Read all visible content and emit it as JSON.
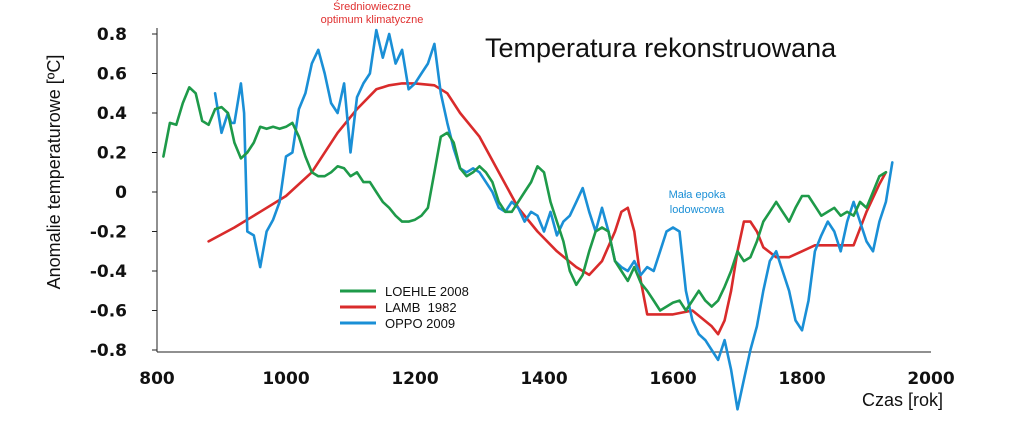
{
  "chart_data": {
    "type": "line",
    "title": "Temperatura rekonstruowana",
    "xlabel": "Czas [rok]",
    "ylabel": "Anomalie temperaturowe [ºC]",
    "xlim": [
      800,
      2000
    ],
    "ylim": [
      -0.8,
      0.8
    ],
    "x_ticks": [
      800,
      1000,
      1200,
      1400,
      1600,
      1800,
      2000
    ],
    "y_ticks": [
      -0.8,
      -0.6,
      -0.4,
      -0.2,
      0,
      0.2,
      0.4,
      0.6,
      0.8
    ],
    "x_tick_labels": [
      "800",
      "1000",
      "1200",
      "1400",
      "1600",
      "1800",
      "2000"
    ],
    "y_tick_labels": [
      "-0.8",
      "-0.6",
      "-0.4",
      "-0.2",
      "0",
      "0.2",
      "0.4",
      "0.6",
      "0.8"
    ],
    "annotations": [
      {
        "lines": [
          "Średniowieczne",
          "optimum klimatyczne"
        ],
        "x": 1170,
        "y": 0.8,
        "color": "#e03030"
      },
      {
        "lines": [
          "Mała epoka",
          "lodowcowa"
        ],
        "x": 1640,
        "y": 0.0,
        "color": "#1a8fd6"
      }
    ],
    "series": [
      {
        "name": "LOEHLE 2008",
        "color": "#1e9a49",
        "x": [
          810,
          820,
          830,
          840,
          850,
          860,
          870,
          880,
          890,
          900,
          910,
          920,
          930,
          940,
          950,
          960,
          970,
          980,
          990,
          1000,
          1010,
          1020,
          1030,
          1040,
          1050,
          1060,
          1070,
          1080,
          1090,
          1100,
          1110,
          1120,
          1130,
          1140,
          1150,
          1160,
          1170,
          1180,
          1190,
          1200,
          1210,
          1220,
          1230,
          1240,
          1250,
          1260,
          1270,
          1280,
          1290,
          1300,
          1310,
          1320,
          1330,
          1340,
          1350,
          1360,
          1370,
          1380,
          1390,
          1400,
          1410,
          1420,
          1430,
          1440,
          1450,
          1460,
          1470,
          1480,
          1490,
          1500,
          1510,
          1520,
          1530,
          1540,
          1550,
          1560,
          1570,
          1580,
          1590,
          1600,
          1610,
          1620,
          1630,
          1640,
          1650,
          1660,
          1670,
          1680,
          1690,
          1700,
          1710,
          1720,
          1730,
          1740,
          1750,
          1760,
          1770,
          1780,
          1790,
          1800,
          1810,
          1820,
          1830,
          1840,
          1850,
          1860,
          1870,
          1880,
          1890,
          1900,
          1910,
          1920,
          1930
        ],
        "values": [
          0.18,
          0.35,
          0.34,
          0.45,
          0.53,
          0.5,
          0.36,
          0.34,
          0.42,
          0.43,
          0.4,
          0.25,
          0.17,
          0.2,
          0.25,
          0.33,
          0.32,
          0.33,
          0.32,
          0.33,
          0.35,
          0.28,
          0.18,
          0.1,
          0.08,
          0.08,
          0.1,
          0.13,
          0.12,
          0.08,
          0.1,
          0.05,
          0.05,
          0.0,
          -0.05,
          -0.08,
          -0.12,
          -0.15,
          -0.15,
          -0.14,
          -0.12,
          -0.08,
          0.1,
          0.28,
          0.3,
          0.25,
          0.12,
          0.08,
          0.1,
          0.13,
          0.1,
          0.05,
          -0.05,
          -0.1,
          -0.1,
          -0.05,
          0.0,
          0.05,
          0.13,
          0.1,
          -0.05,
          -0.15,
          -0.25,
          -0.4,
          -0.47,
          -0.42,
          -0.3,
          -0.2,
          -0.18,
          -0.2,
          -0.35,
          -0.4,
          -0.45,
          -0.38,
          -0.46,
          -0.5,
          -0.55,
          -0.6,
          -0.58,
          -0.56,
          -0.55,
          -0.6,
          -0.55,
          -0.5,
          -0.55,
          -0.58,
          -0.55,
          -0.48,
          -0.4,
          -0.3,
          -0.35,
          -0.33,
          -0.25,
          -0.15,
          -0.1,
          -0.05,
          -0.1,
          -0.15,
          -0.08,
          -0.02,
          -0.02,
          -0.07,
          -0.12,
          -0.1,
          -0.08,
          -0.12,
          -0.1,
          -0.12,
          -0.05,
          -0.08,
          0.0,
          0.08,
          0.1
        ]
      },
      {
        "name": "LAMB  1982",
        "color": "#d92b2b",
        "x": [
          880,
          920,
          960,
          1000,
          1040,
          1080,
          1110,
          1140,
          1160,
          1180,
          1200,
          1230,
          1250,
          1270,
          1300,
          1330,
          1360,
          1390,
          1420,
          1450,
          1470,
          1490,
          1510,
          1520,
          1530,
          1540,
          1550,
          1560,
          1600,
          1630,
          1660,
          1670,
          1680,
          1690,
          1700,
          1710,
          1720,
          1730,
          1740,
          1760,
          1780,
          1800,
          1820,
          1840,
          1860,
          1880,
          1900,
          1920,
          1930
        ],
        "values": [
          -0.25,
          -0.18,
          -0.1,
          -0.02,
          0.1,
          0.3,
          0.42,
          0.52,
          0.54,
          0.55,
          0.55,
          0.54,
          0.5,
          0.4,
          0.28,
          0.1,
          -0.08,
          -0.2,
          -0.3,
          -0.38,
          -0.42,
          -0.35,
          -0.2,
          -0.1,
          -0.08,
          -0.2,
          -0.45,
          -0.62,
          -0.62,
          -0.6,
          -0.68,
          -0.72,
          -0.65,
          -0.5,
          -0.3,
          -0.15,
          -0.15,
          -0.2,
          -0.28,
          -0.33,
          -0.33,
          -0.3,
          -0.27,
          -0.27,
          -0.27,
          -0.27,
          -0.1,
          0.04,
          0.1
        ]
      },
      {
        "name": "OPPO 2009",
        "color": "#1a8fd6",
        "x": [
          890,
          900,
          910,
          915,
          920,
          930,
          935,
          940,
          950,
          960,
          970,
          980,
          990,
          1000,
          1010,
          1020,
          1030,
          1040,
          1050,
          1060,
          1070,
          1080,
          1090,
          1100,
          1110,
          1120,
          1130,
          1140,
          1150,
          1160,
          1170,
          1180,
          1190,
          1200,
          1210,
          1220,
          1230,
          1240,
          1250,
          1260,
          1270,
          1280,
          1290,
          1300,
          1310,
          1320,
          1330,
          1340,
          1350,
          1360,
          1370,
          1380,
          1390,
          1400,
          1410,
          1420,
          1430,
          1440,
          1450,
          1460,
          1470,
          1480,
          1490,
          1500,
          1510,
          1520,
          1530,
          1540,
          1550,
          1560,
          1570,
          1580,
          1590,
          1600,
          1610,
          1620,
          1630,
          1640,
          1650,
          1660,
          1670,
          1680,
          1690,
          1700,
          1710,
          1720,
          1730,
          1740,
          1750,
          1760,
          1770,
          1780,
          1790,
          1800,
          1810,
          1820,
          1830,
          1840,
          1850,
          1860,
          1870,
          1880,
          1890,
          1900,
          1910,
          1920,
          1930,
          1940
        ],
        "values": [
          0.5,
          0.3,
          0.4,
          0.35,
          0.35,
          0.55,
          0.4,
          -0.2,
          -0.22,
          -0.38,
          -0.2,
          -0.14,
          -0.05,
          0.18,
          0.2,
          0.42,
          0.5,
          0.65,
          0.72,
          0.6,
          0.45,
          0.4,
          0.55,
          0.2,
          0.48,
          0.55,
          0.6,
          0.82,
          0.68,
          0.8,
          0.65,
          0.72,
          0.52,
          0.55,
          0.6,
          0.65,
          0.75,
          0.5,
          0.35,
          0.22,
          0.12,
          0.1,
          0.12,
          0.1,
          0.05,
          0.0,
          -0.08,
          -0.1,
          -0.05,
          -0.08,
          -0.15,
          -0.1,
          -0.12,
          -0.2,
          -0.1,
          -0.22,
          -0.15,
          -0.12,
          -0.05,
          0.02,
          -0.1,
          -0.2,
          -0.08,
          -0.2,
          -0.35,
          -0.38,
          -0.4,
          -0.35,
          -0.42,
          -0.38,
          -0.4,
          -0.3,
          -0.2,
          -0.18,
          -0.2,
          -0.5,
          -0.65,
          -0.72,
          -0.75,
          -0.8,
          -0.85,
          -0.75,
          -0.9,
          -1.1,
          -0.95,
          -0.8,
          -0.68,
          -0.5,
          -0.35,
          -0.3,
          -0.4,
          -0.5,
          -0.65,
          -0.7,
          -0.55,
          -0.3,
          -0.22,
          -0.15,
          -0.2,
          -0.3,
          -0.15,
          -0.05,
          -0.15,
          -0.25,
          -0.3,
          -0.15,
          -0.05,
          0.15
        ]
      }
    ],
    "legend": {
      "placement": "lower-center",
      "entries": [
        "LOEHLE 2008",
        "LAMB  1982",
        "OPPO 2009"
      ]
    }
  }
}
